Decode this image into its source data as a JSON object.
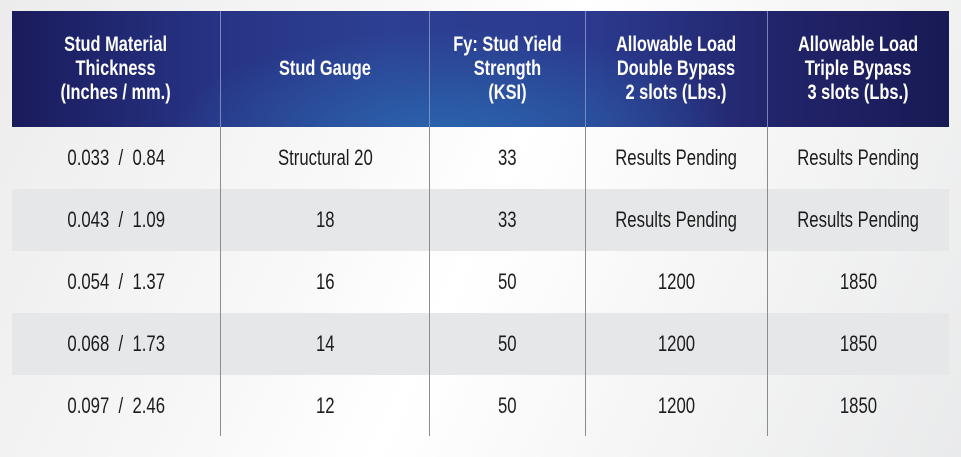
{
  "table": {
    "headers": [
      "Stud Material\nThickness\n(Inches / mm.)",
      "Stud Gauge",
      "Fy: Stud Yield\nStrength\n(KSI)",
      "Allowable Load\nDouble Bypass\n2 slots (Lbs.)",
      "Allowable Load\nTriple Bypass\n3 slots (Lbs.)"
    ],
    "rows": [
      [
        "0.033  /  0.84",
        "Structural 20",
        "33",
        "Results Pending",
        "Results Pending"
      ],
      [
        "0.043  /  1.09",
        "18",
        "33",
        "Results Pending",
        "Results Pending"
      ],
      [
        "0.054  /  1.37",
        "16",
        "50",
        "1200",
        "1850"
      ],
      [
        "0.068  /  1.73",
        "14",
        "50",
        "1200",
        "1850"
      ],
      [
        "0.097  /  2.46",
        "12",
        "50",
        "1200",
        "1850"
      ]
    ]
  },
  "colors": {
    "header_dark": "#1a1b5c",
    "header_mid_blue": "#2a68b2",
    "header_text": "#ffffff",
    "row_alt": "#e6e7e9",
    "row_text": "#1c1c1c",
    "divider": "#8c8c90"
  }
}
